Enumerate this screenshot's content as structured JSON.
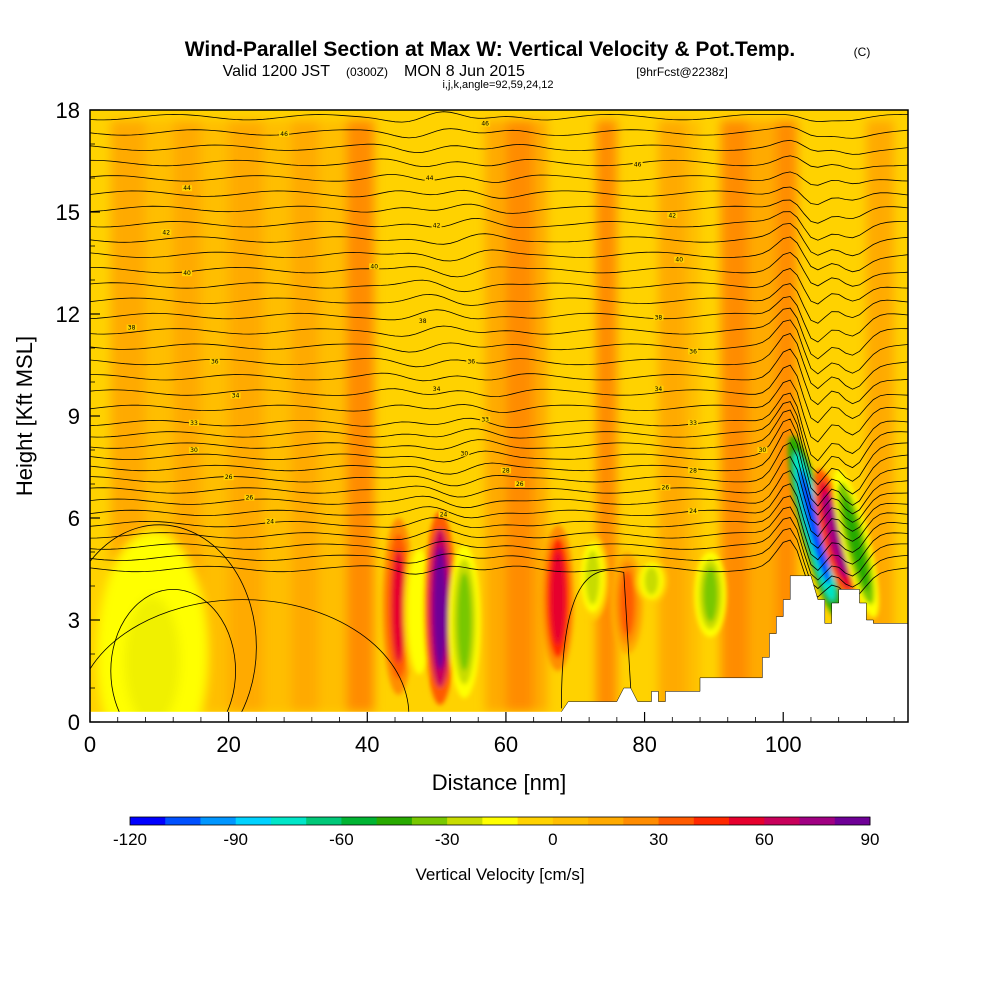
{
  "title": {
    "main": "Wind-Parallel Section at Max W: Vertical Velocity & Pot.Temp.",
    "copyright": "(C)",
    "valid_prefix": "Valid 1200 JST",
    "valid_utc": "(0300Z)",
    "valid_date": "MON 8 Jun 2015",
    "forecast": "[9hrFcst@2238z]",
    "indices": "i,j,k,angle=92,59,24,12"
  },
  "chart_data": {
    "type": "heatmap",
    "xlabel": "Distance [nm]",
    "ylabel": "Height [Kft MSL]",
    "xlim": [
      0,
      118
    ],
    "ylim": [
      0,
      18
    ],
    "x_ticks": [
      "0",
      "20",
      "40",
      "60",
      "80",
      "100"
    ],
    "y_ticks": [
      "0",
      "3",
      "6",
      "9",
      "12",
      "15",
      "18"
    ],
    "x_tick_values": [
      0,
      20,
      40,
      60,
      80,
      100
    ],
    "y_tick_values": [
      0,
      3,
      6,
      9,
      12,
      15,
      18
    ],
    "colorbar": {
      "label": "Vertical Velocity [cm/s]",
      "min": -120,
      "max": 90,
      "step": 10,
      "tick_labels": [
        "-120",
        "-90",
        "-60",
        "-30",
        "0",
        "30",
        "60",
        "90"
      ],
      "tick_values": [
        -120,
        -90,
        -60,
        -30,
        0,
        30,
        60,
        90
      ],
      "colors": [
        "#0000ff",
        "#0050ff",
        "#0096ff",
        "#00d2ff",
        "#00e6c8",
        "#00c878",
        "#00b432",
        "#28aa00",
        "#78c800",
        "#c8dc00",
        "#ffff00",
        "#ffd200",
        "#ffbe00",
        "#ffaa00",
        "#ff8c00",
        "#ff5a00",
        "#ff2800",
        "#e6002d",
        "#c8005a",
        "#a00082",
        "#6e0096"
      ]
    },
    "vertical_velocity_features": [
      {
        "x": 44.5,
        "y_min": 0.8,
        "y_max": 6.0,
        "value": 50
      },
      {
        "x": 47.5,
        "y_min": 1.0,
        "y_max": 5.5,
        "value": -20
      },
      {
        "x": 50.5,
        "y_min": 0.5,
        "y_max": 6.2,
        "value": 80
      },
      {
        "x": 54.0,
        "y_min": 0.7,
        "y_max": 5.2,
        "value": -40
      },
      {
        "x": 67.5,
        "y_min": 1.5,
        "y_max": 5.8,
        "value": 55
      },
      {
        "x": 72.5,
        "y_min": 3.0,
        "y_max": 5.5,
        "value": -25
      },
      {
        "x": 77.5,
        "y_min": 2.0,
        "y_max": 5.0,
        "value": 35
      },
      {
        "x": 81.0,
        "y_min": 3.5,
        "y_max": 4.8,
        "value": -25
      },
      {
        "x": 89.5,
        "y_min": 2.5,
        "y_max": 5.0,
        "value": -35
      },
      {
        "x": 104.5,
        "y_min": 3.0,
        "y_max": 8.5,
        "value": -110
      },
      {
        "x": 107.5,
        "y_min": 3.5,
        "y_max": 7.5,
        "value": 70
      },
      {
        "x": 110.5,
        "y_min": 3.0,
        "y_max": 7.5,
        "value": -45
      }
    ],
    "contour_labels": [
      {
        "x": 28,
        "y": 17.3,
        "text": "46"
      },
      {
        "x": 57,
        "y": 17.6,
        "text": "46"
      },
      {
        "x": 79,
        "y": 16.4,
        "text": "46"
      },
      {
        "x": 14,
        "y": 15.7,
        "text": "44"
      },
      {
        "x": 49,
        "y": 16.0,
        "text": "44"
      },
      {
        "x": 11,
        "y": 14.4,
        "text": "42"
      },
      {
        "x": 50,
        "y": 14.6,
        "text": "42"
      },
      {
        "x": 84,
        "y": 14.9,
        "text": "42"
      },
      {
        "x": 14,
        "y": 13.2,
        "text": "40"
      },
      {
        "x": 41,
        "y": 13.4,
        "text": "40"
      },
      {
        "x": 85,
        "y": 13.6,
        "text": "40"
      },
      {
        "x": 6,
        "y": 11.6,
        "text": "38"
      },
      {
        "x": 48,
        "y": 11.8,
        "text": "38"
      },
      {
        "x": 82,
        "y": 11.9,
        "text": "38"
      },
      {
        "x": 18,
        "y": 10.6,
        "text": "36"
      },
      {
        "x": 55,
        "y": 10.6,
        "text": "36"
      },
      {
        "x": 87,
        "y": 10.9,
        "text": "36"
      },
      {
        "x": 21,
        "y": 9.6,
        "text": "34"
      },
      {
        "x": 50,
        "y": 9.8,
        "text": "34"
      },
      {
        "x": 82,
        "y": 9.8,
        "text": "34"
      },
      {
        "x": 15,
        "y": 8.8,
        "text": "33"
      },
      {
        "x": 57,
        "y": 8.9,
        "text": "33"
      },
      {
        "x": 87,
        "y": 8.8,
        "text": "33"
      },
      {
        "x": 15,
        "y": 8.0,
        "text": "30"
      },
      {
        "x": 54,
        "y": 7.9,
        "text": "30"
      },
      {
        "x": 97,
        "y": 8.0,
        "text": "30"
      },
      {
        "x": 20,
        "y": 7.2,
        "text": "26"
      },
      {
        "x": 60,
        "y": 7.4,
        "text": "28"
      },
      {
        "x": 87,
        "y": 7.4,
        "text": "28"
      },
      {
        "x": 23,
        "y": 6.6,
        "text": "26"
      },
      {
        "x": 62,
        "y": 7.0,
        "text": "26"
      },
      {
        "x": 83,
        "y": 6.9,
        "text": "26"
      },
      {
        "x": 26,
        "y": 5.9,
        "text": "24"
      },
      {
        "x": 51,
        "y": 6.1,
        "text": "24"
      },
      {
        "x": 87,
        "y": 6.2,
        "text": "24"
      }
    ]
  }
}
